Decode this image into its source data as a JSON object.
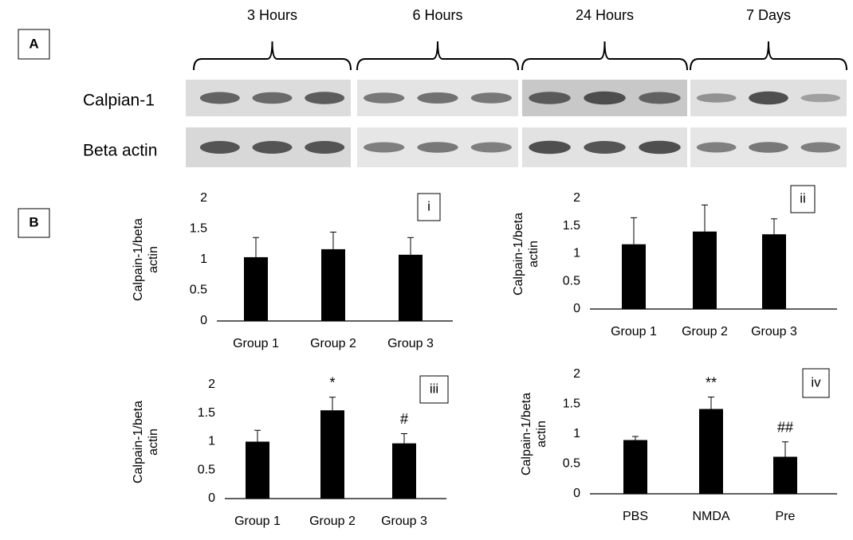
{
  "blot": {
    "panel_label": "A",
    "time_points": [
      "3 Hours",
      "6 Hours",
      "24 Hours",
      "7 Days"
    ],
    "rows": [
      "Calpian-1",
      "Beta actin"
    ]
  },
  "panel_b_label": "B",
  "chart_data": [
    {
      "type": "bar",
      "panel_label": "i",
      "y_label": "Calpain-1/beta actin",
      "categories": [
        "Group 1",
        "Group 2",
        "Group 3"
      ],
      "values": [
        1.04,
        1.17,
        1.08
      ],
      "errors": [
        0.32,
        0.28,
        0.28
      ],
      "color": "#000000",
      "ylim": [
        0,
        2
      ],
      "yticks": [
        0,
        0.5,
        1,
        1.5,
        2
      ]
    },
    {
      "type": "bar",
      "panel_label": "ii",
      "y_label": "Calpain-1/beta actin",
      "categories": [
        "Group 1",
        "Group 2",
        "Group 3"
      ],
      "values": [
        1.17,
        1.4,
        1.35
      ],
      "errors": [
        0.48,
        0.48,
        0.28
      ],
      "color": "#000000",
      "ylim": [
        0,
        2
      ],
      "yticks": [
        0,
        0.5,
        1,
        1.5,
        2
      ]
    },
    {
      "type": "bar",
      "panel_label": "iii",
      "y_label": "Calpain-1/beta actin",
      "categories": [
        "Group 1",
        "Group 2",
        "Group 3"
      ],
      "values": [
        1.0,
        1.55,
        0.97
      ],
      "errors": [
        0.2,
        0.23,
        0.17
      ],
      "markers": [
        null,
        "*",
        "#"
      ],
      "color": "#000000",
      "ylim": [
        0,
        2
      ],
      "yticks": [
        0,
        0.5,
        1,
        1.5,
        2
      ]
    },
    {
      "type": "bar",
      "panel_label": "iv",
      "y_label": "Calpain-1/beta actin",
      "categories": [
        "PBS",
        "NMDA",
        "Pre"
      ],
      "values": [
        0.9,
        1.42,
        0.62
      ],
      "errors": [
        0.06,
        0.2,
        0.25
      ],
      "markers": [
        null,
        "**",
        "##"
      ],
      "color": "#000000",
      "ylim": [
        0,
        2
      ],
      "yticks": [
        0,
        0.5,
        1,
        1.5,
        2
      ]
    }
  ]
}
